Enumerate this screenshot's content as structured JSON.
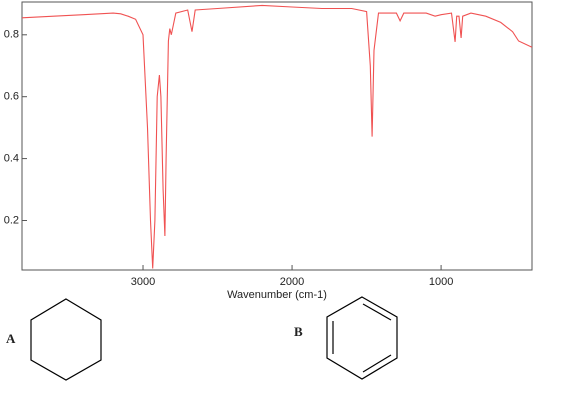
{
  "chart_data": {
    "type": "line",
    "x_label": "Wavenumber (cm-1)",
    "x": [
      3812,
      3600,
      3400,
      3200,
      3150,
      3100,
      3050,
      3000,
      2970,
      2950,
      2935,
      2920,
      2905,
      2890,
      2880,
      2865,
      2853,
      2845,
      2830,
      2820,
      2810,
      2780,
      2700,
      2671,
      2650,
      2500,
      2200,
      2000,
      1800,
      1600,
      1500,
      1475,
      1463,
      1450,
      1420,
      1300,
      1275,
      1250,
      1100,
      1040,
      1000,
      930,
      906,
      895,
      880,
      866,
      855,
      800,
      700,
      600,
      520,
      480,
      390
    ],
    "values": [
      0.855,
      0.86,
      0.865,
      0.87,
      0.868,
      0.86,
      0.85,
      0.8,
      0.5,
      0.2,
      0.045,
      0.2,
      0.6,
      0.67,
      0.6,
      0.3,
      0.15,
      0.4,
      0.78,
      0.82,
      0.8,
      0.87,
      0.88,
      0.81,
      0.88,
      0.885,
      0.895,
      0.89,
      0.885,
      0.885,
      0.875,
      0.7,
      0.471,
      0.75,
      0.87,
      0.87,
      0.845,
      0.87,
      0.87,
      0.86,
      0.865,
      0.87,
      0.777,
      0.86,
      0.86,
      0.79,
      0.86,
      0.87,
      0.86,
      0.84,
      0.81,
      0.78,
      0.76
    ],
    "color": "#f05252",
    "xlim": [
      3812,
      390
    ],
    "ylim": [
      0.04,
      0.906
    ],
    "xticks": [
      3000,
      2000,
      1000
    ],
    "yticks": [
      0.2,
      0.4,
      0.6,
      0.8
    ]
  },
  "structures": [
    {
      "label": "A"
    },
    {
      "label": "B"
    }
  ]
}
